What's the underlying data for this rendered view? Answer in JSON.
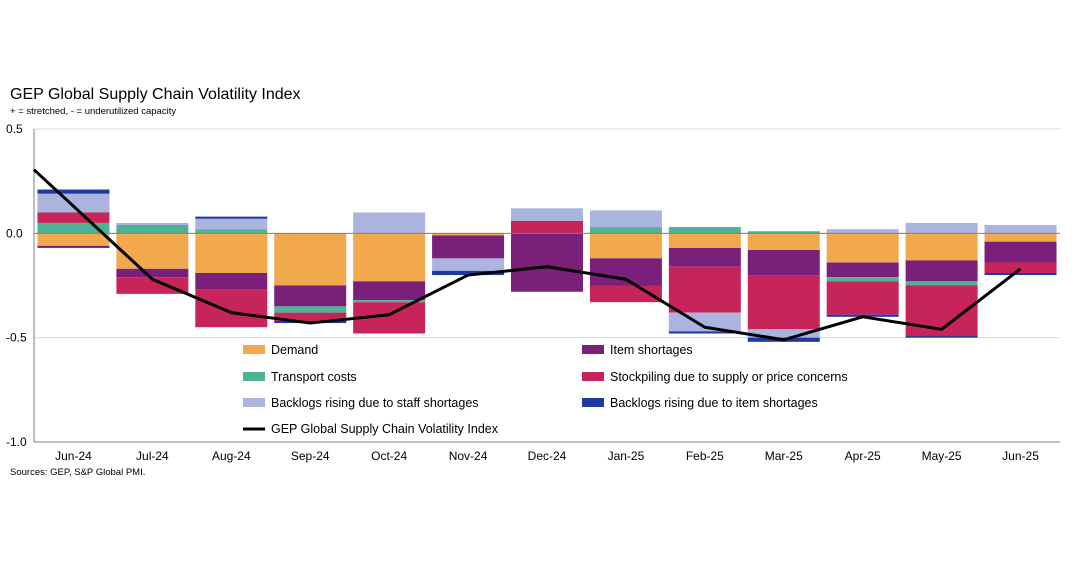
{
  "chart_data": {
    "type": "bar",
    "title": "GEP Global Supply Chain Volatility Index",
    "subtitle": "+ = stretched, - = underutilized capacity",
    "source": "Sources: GEP, S&P Global PMI.",
    "ylim": [
      -1.0,
      0.5
    ],
    "yticks": [
      "0.5",
      "0.0",
      "-0.5",
      "-1.0"
    ],
    "ytick_values": [
      0.5,
      0.0,
      -0.5,
      -1.0
    ],
    "grid": true,
    "categories": [
      "Jun-24",
      "Jul-24",
      "Aug-24",
      "Sep-24",
      "Oct-24",
      "Nov-24",
      "Dec-24",
      "Jan-25",
      "Feb-25",
      "Mar-25",
      "Apr-25",
      "May-25",
      "Jun-25"
    ],
    "series": [
      {
        "name": "Demand",
        "color": "#F2A94D",
        "values": [
          -0.06,
          -0.17,
          -0.19,
          -0.25,
          -0.23,
          -0.01,
          0.0,
          -0.12,
          -0.07,
          -0.08,
          -0.14,
          -0.13,
          -0.04
        ]
      },
      {
        "name": "Item shortages",
        "color": "#7A1F7A",
        "values": [
          -0.01,
          -0.04,
          -0.08,
          -0.1,
          -0.09,
          -0.11,
          -0.28,
          -0.13,
          -0.09,
          -0.12,
          -0.07,
          -0.1,
          -0.1
        ]
      },
      {
        "name": "Transport costs",
        "color": "#4DB394",
        "values": [
          0.05,
          0.04,
          0.02,
          -0.03,
          -0.01,
          0.0,
          0.0,
          0.03,
          0.03,
          0.01,
          -0.02,
          -0.02,
          0.0
        ]
      },
      {
        "name": "Stockpiling due to supply or price concerns",
        "color": "#C7245A",
        "values": [
          0.05,
          -0.08,
          -0.18,
          -0.04,
          -0.15,
          0.0,
          0.06,
          -0.08,
          -0.22,
          -0.26,
          -0.16,
          -0.24,
          -0.05
        ]
      },
      {
        "name": "Backlogs rising due to staff shortages",
        "color": "#AAB4DE",
        "values": [
          0.09,
          0.01,
          0.05,
          0.0,
          0.1,
          -0.06,
          0.06,
          0.08,
          -0.09,
          -0.04,
          0.02,
          0.05,
          0.04
        ]
      },
      {
        "name": "Backlogs rising due to item shortages",
        "color": "#1E3AA0",
        "values": [
          0.02,
          0.0,
          0.01,
          -0.01,
          0.0,
          -0.02,
          0.0,
          0.0,
          -0.01,
          -0.02,
          -0.01,
          -0.01,
          -0.01
        ]
      }
    ],
    "line": {
      "name": "GEP Global Supply Chain Volatility Index",
      "color": "#000000",
      "values": [
        0.13,
        -0.22,
        -0.38,
        -0.43,
        -0.39,
        -0.2,
        -0.16,
        -0.22,
        -0.45,
        -0.51,
        -0.4,
        -0.46,
        -0.17
      ]
    },
    "legend_placement": "bottom-center, inside plot"
  }
}
